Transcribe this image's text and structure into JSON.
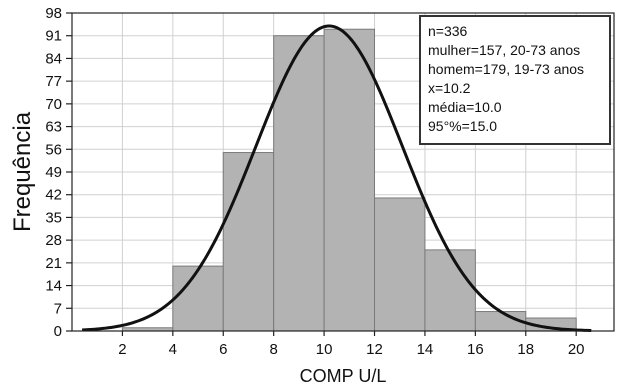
{
  "chart_data": {
    "type": "bar",
    "title": "",
    "xlabel": "COMP U/L",
    "ylabel": "Frequência",
    "xlim": [
      0,
      21.5
    ],
    "ylim": [
      0,
      98
    ],
    "x_ticks": [
      2,
      4,
      6,
      8,
      10,
      12,
      14,
      16,
      18,
      20
    ],
    "y_ticks": [
      0,
      7,
      14,
      21,
      28,
      35,
      42,
      49,
      56,
      63,
      70,
      77,
      84,
      91,
      98
    ],
    "grid": true,
    "legend_position": "top-right",
    "bars": [
      {
        "bin_start": 2,
        "bin_end": 4,
        "value": 1
      },
      {
        "bin_start": 4,
        "bin_end": 6,
        "value": 20
      },
      {
        "bin_start": 6,
        "bin_end": 8,
        "value": 55
      },
      {
        "bin_start": 8,
        "bin_end": 10,
        "value": 91
      },
      {
        "bin_start": 10,
        "bin_end": 12,
        "value": 93
      },
      {
        "bin_start": 12,
        "bin_end": 14,
        "value": 41
      },
      {
        "bin_start": 14,
        "bin_end": 16,
        "value": 25
      },
      {
        "bin_start": 16,
        "bin_end": 18,
        "value": 6
      },
      {
        "bin_start": 18,
        "bin_end": 20,
        "value": 4
      }
    ],
    "curve": {
      "type": "normal",
      "mean": 10.2,
      "peak": 94,
      "sd": 2.9,
      "x_start": 0.4,
      "x_end": 20.6
    },
    "bar_color": "#b3b3b3",
    "bar_edge_color": "#7a7a7a",
    "curve_color": "#111111",
    "legend": {
      "lines": [
        "n=336",
        "mulher=157, 20-73 anos",
        "homem=179, 19-73 anos",
        "x=10.2",
        "média=10.0",
        "95°%=15.0"
      ]
    }
  }
}
